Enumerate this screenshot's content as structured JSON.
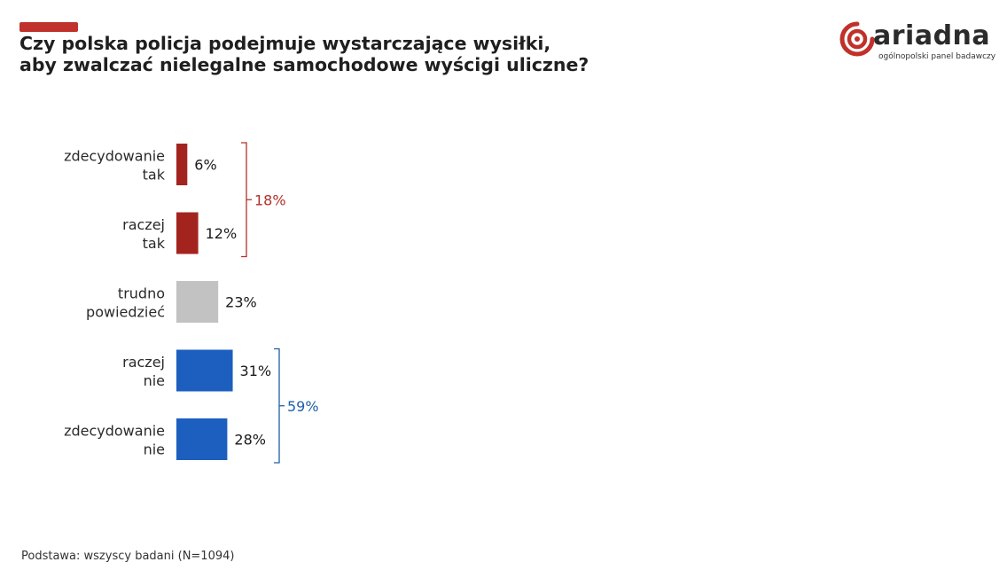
{
  "title": {
    "line1": "Czy polska policja podejmuje wystarczające wysiłki,",
    "line2": "aby zwalczać nielegalne samochodowe wyścigi uliczne?"
  },
  "logo": {
    "name": "ariadna",
    "tagline": "ogólnopolski panel badawczy"
  },
  "footer": "Podstawa: wszyscy badani (N=1094)",
  "colors": {
    "accent": "#c0312b",
    "yes": "#a3241f",
    "neutral": "#c2c2c2",
    "no": "#1c5fbf"
  },
  "chart_data": {
    "type": "bar",
    "orientation": "horizontal",
    "categories": [
      [
        "zdecydowanie",
        "tak"
      ],
      [
        "raczej",
        "tak"
      ],
      [
        "trudno",
        "powiedzieć"
      ],
      [
        "raczej",
        "nie"
      ],
      [
        "zdecydowanie",
        "nie"
      ]
    ],
    "values": [
      6,
      12,
      23,
      31,
      28
    ],
    "value_labels": [
      "6%",
      "12%",
      "23%",
      "31%",
      "28%"
    ],
    "bar_colors": [
      "#a3241f",
      "#a3241f",
      "#c2c2c2",
      "#1c5fbf",
      "#1c5fbf"
    ],
    "groups": [
      {
        "label": "18%",
        "from": 0,
        "to": 1,
        "color": "#b0302b"
      },
      {
        "label": "59%",
        "from": 3,
        "to": 4,
        "color": "#1f5fa8"
      }
    ],
    "title": "Czy polska policja podejmuje wystarczające wysiłki, aby zwalczać nielegalne samochodowe wyścigi uliczne?",
    "xlabel": "",
    "ylabel": ""
  }
}
